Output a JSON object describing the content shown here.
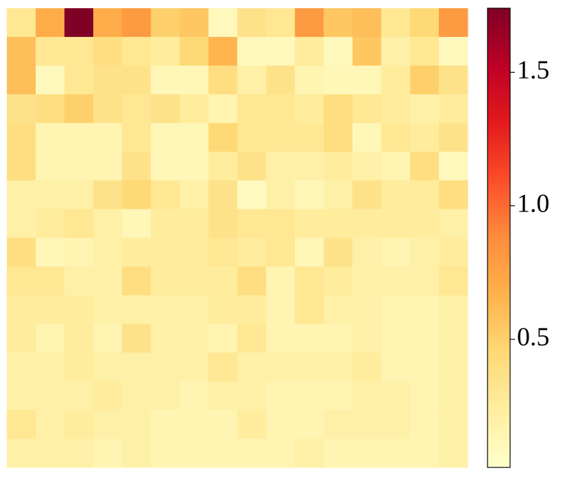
{
  "chart_data": {
    "type": "heatmap",
    "colormap": "YlOrRd",
    "values": [
      [
        0.3,
        0.7,
        1.74,
        0.7,
        0.8,
        0.5,
        0.55,
        0.1,
        0.35,
        0.3,
        0.8,
        0.55,
        0.6,
        0.3,
        0.45,
        0.8
      ],
      [
        0.6,
        0.3,
        0.3,
        0.4,
        0.3,
        0.25,
        0.45,
        0.65,
        0.1,
        0.1,
        0.25,
        0.1,
        0.55,
        0.2,
        0.3,
        0.1
      ],
      [
        0.6,
        0.1,
        0.3,
        0.35,
        0.35,
        0.12,
        0.12,
        0.4,
        0.2,
        0.35,
        0.15,
        0.12,
        0.12,
        0.25,
        0.5,
        0.35
      ],
      [
        0.35,
        0.4,
        0.5,
        0.35,
        0.3,
        0.35,
        0.25,
        0.15,
        0.3,
        0.3,
        0.25,
        0.4,
        0.3,
        0.25,
        0.2,
        0.25
      ],
      [
        0.4,
        0.15,
        0.15,
        0.15,
        0.3,
        0.12,
        0.12,
        0.45,
        0.3,
        0.3,
        0.3,
        0.4,
        0.12,
        0.3,
        0.25,
        0.35
      ],
      [
        0.4,
        0.15,
        0.15,
        0.15,
        0.35,
        0.12,
        0.12,
        0.25,
        0.35,
        0.2,
        0.2,
        0.25,
        0.2,
        0.15,
        0.4,
        0.1
      ],
      [
        0.2,
        0.2,
        0.2,
        0.35,
        0.45,
        0.3,
        0.2,
        0.35,
        0.08,
        0.2,
        0.12,
        0.2,
        0.35,
        0.25,
        0.25,
        0.4
      ],
      [
        0.2,
        0.25,
        0.3,
        0.2,
        0.12,
        0.25,
        0.25,
        0.35,
        0.3,
        0.3,
        0.25,
        0.25,
        0.25,
        0.25,
        0.25,
        0.2
      ],
      [
        0.4,
        0.12,
        0.15,
        0.2,
        0.25,
        0.25,
        0.25,
        0.3,
        0.25,
        0.3,
        0.12,
        0.35,
        0.2,
        0.15,
        0.2,
        0.25
      ],
      [
        0.3,
        0.3,
        0.2,
        0.2,
        0.4,
        0.25,
        0.25,
        0.25,
        0.4,
        0.15,
        0.3,
        0.25,
        0.2,
        0.2,
        0.2,
        0.3
      ],
      [
        0.25,
        0.25,
        0.25,
        0.2,
        0.2,
        0.2,
        0.2,
        0.25,
        0.25,
        0.15,
        0.3,
        0.2,
        0.2,
        0.15,
        0.15,
        0.2
      ],
      [
        0.25,
        0.15,
        0.25,
        0.15,
        0.35,
        0.2,
        0.2,
        0.15,
        0.3,
        0.15,
        0.15,
        0.15,
        0.2,
        0.15,
        0.15,
        0.2
      ],
      [
        0.2,
        0.2,
        0.25,
        0.2,
        0.2,
        0.2,
        0.2,
        0.3,
        0.2,
        0.2,
        0.2,
        0.2,
        0.25,
        0.15,
        0.15,
        0.2
      ],
      [
        0.2,
        0.2,
        0.2,
        0.25,
        0.2,
        0.2,
        0.15,
        0.2,
        0.2,
        0.15,
        0.15,
        0.15,
        0.2,
        0.2,
        0.15,
        0.2
      ],
      [
        0.3,
        0.2,
        0.25,
        0.2,
        0.2,
        0.15,
        0.15,
        0.15,
        0.25,
        0.15,
        0.15,
        0.2,
        0.2,
        0.2,
        0.15,
        0.2
      ],
      [
        0.2,
        0.2,
        0.2,
        0.15,
        0.2,
        0.15,
        0.15,
        0.15,
        0.15,
        0.15,
        0.2,
        0.15,
        0.15,
        0.15,
        0.15,
        0.2
      ]
    ],
    "zlim": [
      0.02,
      1.74
    ],
    "zticks": [
      0.5,
      {
        "value": 1,
        "label": "1.0"
      },
      1.5
    ]
  }
}
